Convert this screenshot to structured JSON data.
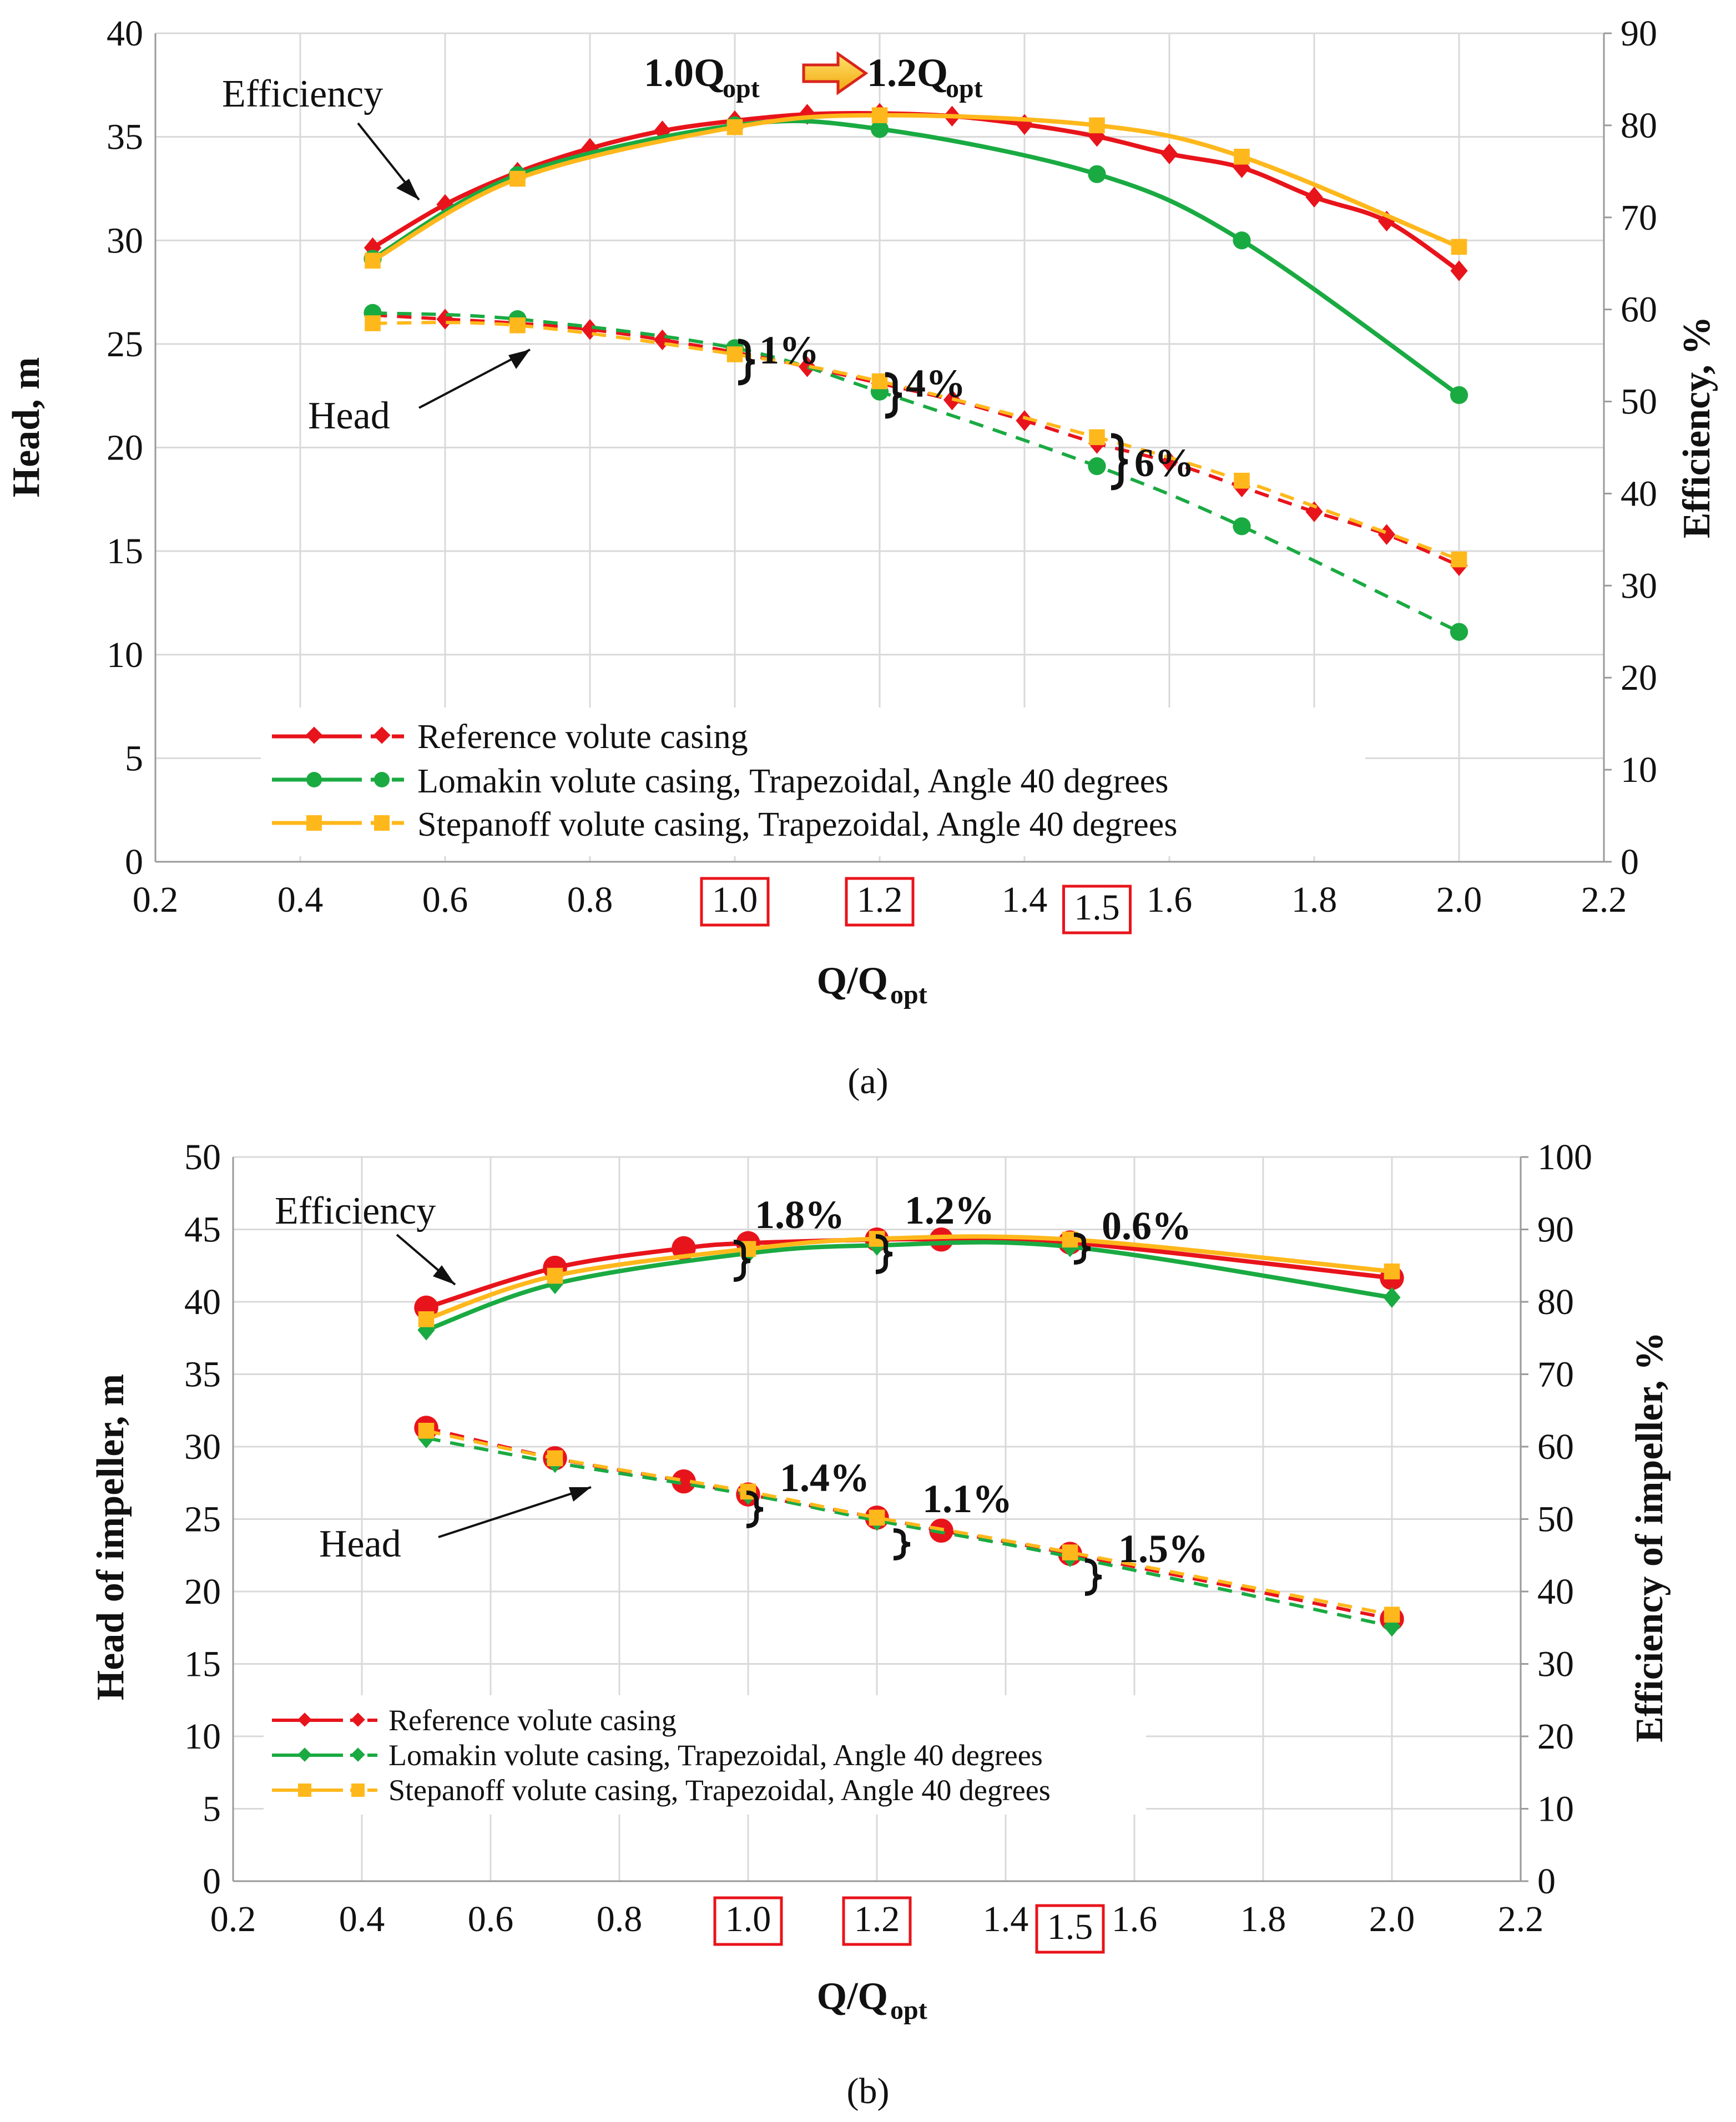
{
  "chart_data": [
    {
      "id": "a",
      "type": "line",
      "caption": "(a)",
      "xlabel": "Q/Q",
      "xlabel_sub": "opt",
      "ylabel_left": "Head, m",
      "ylabel_right": "Efficiency, %",
      "xlim": [
        0.2,
        2.2
      ],
      "xticks": [
        "0.2",
        "0.4",
        "0.6",
        "0.8",
        "1.0",
        "1.2",
        "1.4",
        "1.6",
        "1.8",
        "2.0",
        "2.2"
      ],
      "ylim_left": [
        0,
        40
      ],
      "yticks_left": [
        "0",
        "5",
        "10",
        "15",
        "20",
        "25",
        "30",
        "35",
        "40"
      ],
      "ylim_right": [
        0,
        90
      ],
      "yticks_right": [
        "0",
        "10",
        "20",
        "30",
        "40",
        "50",
        "60",
        "70",
        "80",
        "90"
      ],
      "boxed_ticks": [
        "1.0",
        "1.2",
        "1.5"
      ],
      "boxed_values": [
        1.0,
        1.2,
        1.5
      ],
      "labels": {
        "efficiency": "Efficiency",
        "head": "Head",
        "qopt_from": "1.0Q",
        "qopt_to": "1.2Q",
        "qopt_sub": "opt",
        "pct1": "1%",
        "pct2": "4%",
        "pct3": "6%"
      },
      "series": [
        {
          "name": "Reference volute casing",
          "color": "#e8141b",
          "marker": "diamond",
          "efficiency": {
            "x": [
              0.5,
              0.6,
              0.7,
              0.8,
              0.9,
              1.0,
              1.1,
              1.2,
              1.3,
              1.4,
              1.5,
              1.6,
              1.7,
              1.8,
              1.9,
              2.0
            ],
            "y": [
              66.7,
              71.4,
              74.9,
              77.5,
              79.4,
              80.5,
              81.2,
              81.3,
              81.0,
              80.1,
              78.8,
              76.9,
              75.4,
              72.2,
              69.6,
              64.2
            ]
          },
          "head": {
            "x": [
              0.5,
              0.6,
              0.7,
              0.8,
              0.9,
              1.0,
              1.1,
              1.2,
              1.3,
              1.4,
              1.5,
              1.6,
              1.7,
              1.8,
              1.9,
              2.0
            ],
            "y": [
              26.4,
              26.2,
              26.0,
              25.7,
              25.2,
              24.6,
              23.9,
              23.1,
              22.3,
              21.3,
              20.2,
              19.3,
              18.1,
              16.9,
              15.8,
              14.3
            ]
          }
        },
        {
          "name": "Lomakin volute casing, Trapezoidal, Angle 40 degrees",
          "color": "#1aaa42",
          "marker": "circle",
          "efficiency": {
            "x": [
              0.5,
              0.7,
              1.0,
              1.2,
              1.5,
              1.7,
              2.0
            ],
            "y": [
              65.5,
              74.6,
              80.0,
              79.6,
              74.7,
              67.5,
              50.7
            ]
          },
          "head": {
            "x": [
              0.5,
              0.7,
              1.0,
              1.2,
              1.5,
              1.7,
              2.0
            ],
            "y": [
              26.5,
              26.2,
              24.8,
              22.7,
              19.1,
              16.2,
              11.1
            ]
          }
        },
        {
          "name": "Stepanoff volute casing, Trapezoidal, Angle 40 degrees",
          "color": "#ffb81c",
          "marker": "square",
          "efficiency": {
            "x": [
              0.5,
              0.7,
              1.0,
              1.2,
              1.5,
              1.7,
              2.0
            ],
            "y": [
              65.3,
              74.2,
              79.8,
              81.1,
              80.0,
              76.6,
              66.8
            ]
          },
          "head": {
            "x": [
              0.5,
              0.7,
              1.0,
              1.2,
              1.5,
              1.7,
              2.0
            ],
            "y": [
              26.0,
              25.9,
              24.5,
              23.2,
              20.5,
              18.4,
              14.6
            ]
          }
        }
      ]
    },
    {
      "id": "b",
      "type": "line",
      "caption": "(b)",
      "xlabel": "Q/Q",
      "xlabel_sub": "opt",
      "ylabel_left": "Head of impeller, m",
      "ylabel_right": "Efficiency of impeller, %",
      "xlim": [
        0.2,
        2.2
      ],
      "xticks": [
        "0.2",
        "0.4",
        "0.6",
        "0.8",
        "1.0",
        "1.2",
        "1.4",
        "1.6",
        "1.8",
        "2.0",
        "2.2"
      ],
      "ylim_left": [
        0,
        50
      ],
      "yticks_left": [
        "0",
        "5",
        "10",
        "15",
        "20",
        "25",
        "30",
        "35",
        "40",
        "45",
        "50"
      ],
      "ylim_right": [
        0,
        100
      ],
      "yticks_right": [
        "0",
        "10",
        "20",
        "30",
        "40",
        "50",
        "60",
        "70",
        "80",
        "90",
        "100"
      ],
      "boxed_ticks": [
        "1.0",
        "1.2",
        "1.5"
      ],
      "boxed_values": [
        1.0,
        1.2,
        1.5
      ],
      "labels": {
        "efficiency": "Efficiency",
        "head": "Head",
        "e1": "1.8%",
        "e2": "1.2%",
        "e3": "0.6%",
        "h1": "1.4%",
        "h2": "1.1%",
        "h3": "1.5%"
      },
      "series": [
        {
          "name": "Reference volute casing",
          "color": "#e8141b",
          "marker": "circle",
          "efficiency": {
            "x": [
              0.5,
              0.7,
              0.9,
              1.0,
              1.2,
              1.3,
              1.5,
              2.0
            ],
            "y": [
              79.2,
              84.7,
              87.4,
              88.1,
              88.6,
              88.6,
              88.2,
              83.3
            ]
          },
          "head": {
            "x": [
              0.5,
              0.7,
              0.9,
              1.0,
              1.2,
              1.3,
              1.5,
              2.0
            ],
            "y": [
              31.3,
              29.2,
              27.6,
              26.7,
              25.1,
              24.2,
              22.6,
              18.1
            ]
          }
        },
        {
          "name": "Lomakin volute casing, Trapezoidal, Angle 40 degrees",
          "color": "#1aaa42",
          "marker": "diamond",
          "efficiency": {
            "x": [
              0.5,
              0.7,
              1.0,
              1.2,
              1.5,
              2.0
            ],
            "y": [
              76.1,
              82.5,
              86.7,
              87.8,
              87.6,
              80.6
            ]
          },
          "head": {
            "x": [
              0.5,
              0.7,
              1.0,
              1.2,
              1.5,
              2.0
            ],
            "y": [
              30.6,
              28.9,
              26.7,
              24.9,
              22.4,
              17.6
            ]
          }
        },
        {
          "name": "Stepanoff volute casing, Trapezoidal, Angle 40 degrees",
          "color": "#ffb81c",
          "marker": "square",
          "efficiency": {
            "x": [
              0.5,
              0.7,
              1.0,
              1.2,
              1.5,
              2.0
            ],
            "y": [
              77.6,
              83.6,
              87.3,
              88.7,
              88.6,
              84.2
            ]
          },
          "head": {
            "x": [
              0.5,
              0.7,
              1.0,
              1.2,
              1.5,
              2.0
            ],
            "y": [
              31.1,
              29.2,
              26.9,
              25.1,
              22.7,
              18.4
            ]
          }
        }
      ]
    }
  ]
}
